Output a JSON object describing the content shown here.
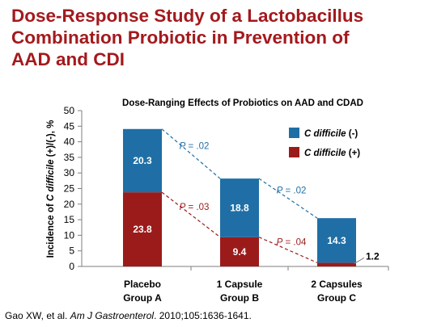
{
  "slide": {
    "title_lines": [
      "Dose-Response Study of a Lactobacillus",
      "Combination Probiotic in Prevention of",
      "AAD and CDI"
    ],
    "citation": {
      "authors": "Gao XW, et al. ",
      "journal": "Am J Gastroenterol",
      "details": ". 2010;105:1636-1641."
    }
  },
  "chart_data": {
    "type": "bar",
    "stacked": true,
    "title": "Dose-Ranging Effects of Probiotics on AAD and CDAD",
    "ylabel": "Incidence of C difficile (+)/(-), %",
    "ylabel_parts": [
      "Incidence of ",
      "C difficile",
      " (+)/(-), %"
    ],
    "ylim": [
      0,
      50
    ],
    "yticks": [
      0,
      5,
      10,
      15,
      20,
      25,
      30,
      35,
      40,
      45,
      50
    ],
    "categories": [
      [
        "Placebo",
        "Group A"
      ],
      [
        "1 Capsule",
        "Group B"
      ],
      [
        "2 Capsules",
        "Group C"
      ]
    ],
    "series": [
      {
        "name": "C difficile (+)",
        "name_italic": "C difficile",
        "name_suffix": " (+)",
        "color": "#9b1b1b",
        "values": [
          23.8,
          9.4,
          1.2
        ]
      },
      {
        "name": "C difficile (-)",
        "name_italic": "C difficile",
        "name_suffix": " (-)",
        "color": "#1f6fa6",
        "values": [
          20.3,
          18.8,
          14.3
        ]
      }
    ],
    "legend_position": "right",
    "annotations": [
      {
        "label": "P = .02",
        "series": "C difficile (-)",
        "from": 0,
        "to": 1,
        "color": "#1f6fa6"
      },
      {
        "label": "P = .02",
        "series": "C difficile (-)",
        "from": 1,
        "to": 2,
        "color": "#1f6fa6"
      },
      {
        "label": "P = .03",
        "series": "C difficile (+)",
        "from": 0,
        "to": 1,
        "color": "#9b1b1b"
      },
      {
        "label": "P = .04",
        "series": "C difficile (+)",
        "from": 1,
        "to": 2,
        "color": "#9b1b1b"
      }
    ],
    "grid": false
  }
}
